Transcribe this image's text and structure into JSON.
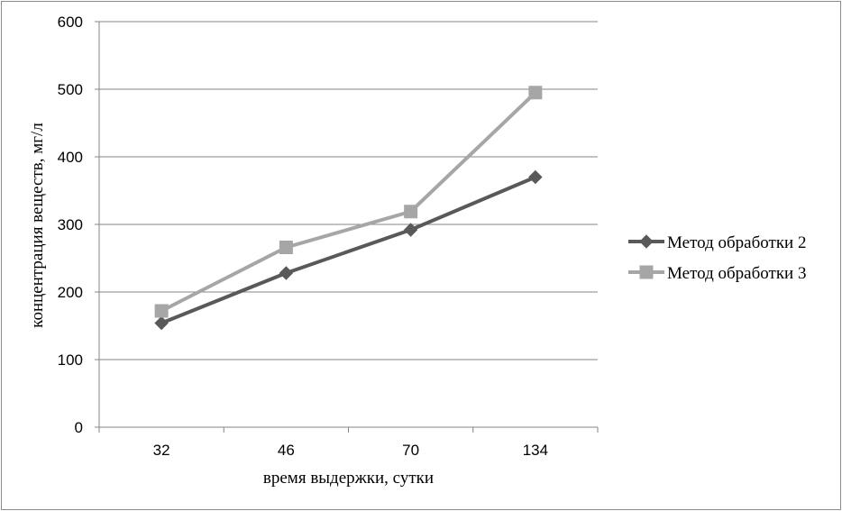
{
  "chart_data": {
    "type": "line",
    "categories": [
      "32",
      "46",
      "70",
      "134"
    ],
    "xlabel": "время выдержки, сутки",
    "ylabel": "концентрация веществ, мг/л",
    "ylim": [
      0,
      600
    ],
    "yticks": [
      "0",
      "100",
      "200",
      "300",
      "400",
      "500",
      "600"
    ],
    "grid": true,
    "legend_position": "right",
    "series": [
      {
        "name": "Метод обработки 2",
        "values": [
          154,
          228,
          292,
          370
        ],
        "color": "#595959",
        "marker": "diamond"
      },
      {
        "name": "Метод обработки 3",
        "values": [
          172,
          266,
          319,
          495
        ],
        "color": "#a6a6a6",
        "marker": "square"
      }
    ]
  }
}
